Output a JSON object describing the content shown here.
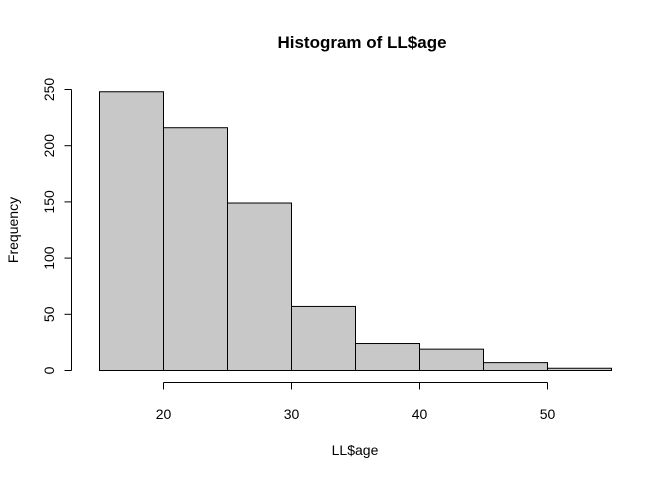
{
  "chart_data": {
    "type": "bar",
    "title": "Histogram of LL$age",
    "xlabel": "LL$age",
    "ylabel": "Frequency",
    "bins": [
      {
        "from": 15,
        "to": 20,
        "count": 248
      },
      {
        "from": 20,
        "to": 25,
        "count": 216
      },
      {
        "from": 25,
        "to": 30,
        "count": 149
      },
      {
        "from": 30,
        "to": 35,
        "count": 57
      },
      {
        "from": 35,
        "to": 40,
        "count": 24
      },
      {
        "from": 40,
        "to": 45,
        "count": 19
      },
      {
        "from": 45,
        "to": 50,
        "count": 7
      },
      {
        "from": 50,
        "to": 55,
        "count": 2
      }
    ],
    "xlim": [
      15,
      55
    ],
    "ylim": [
      0,
      250
    ],
    "x_ticks": [
      20,
      30,
      40,
      50
    ],
    "y_ticks": [
      0,
      50,
      100,
      150,
      200,
      250
    ],
    "grid": false,
    "colors": {
      "bar_fill": "#c8c8c8",
      "bar_stroke": "#000000"
    }
  }
}
